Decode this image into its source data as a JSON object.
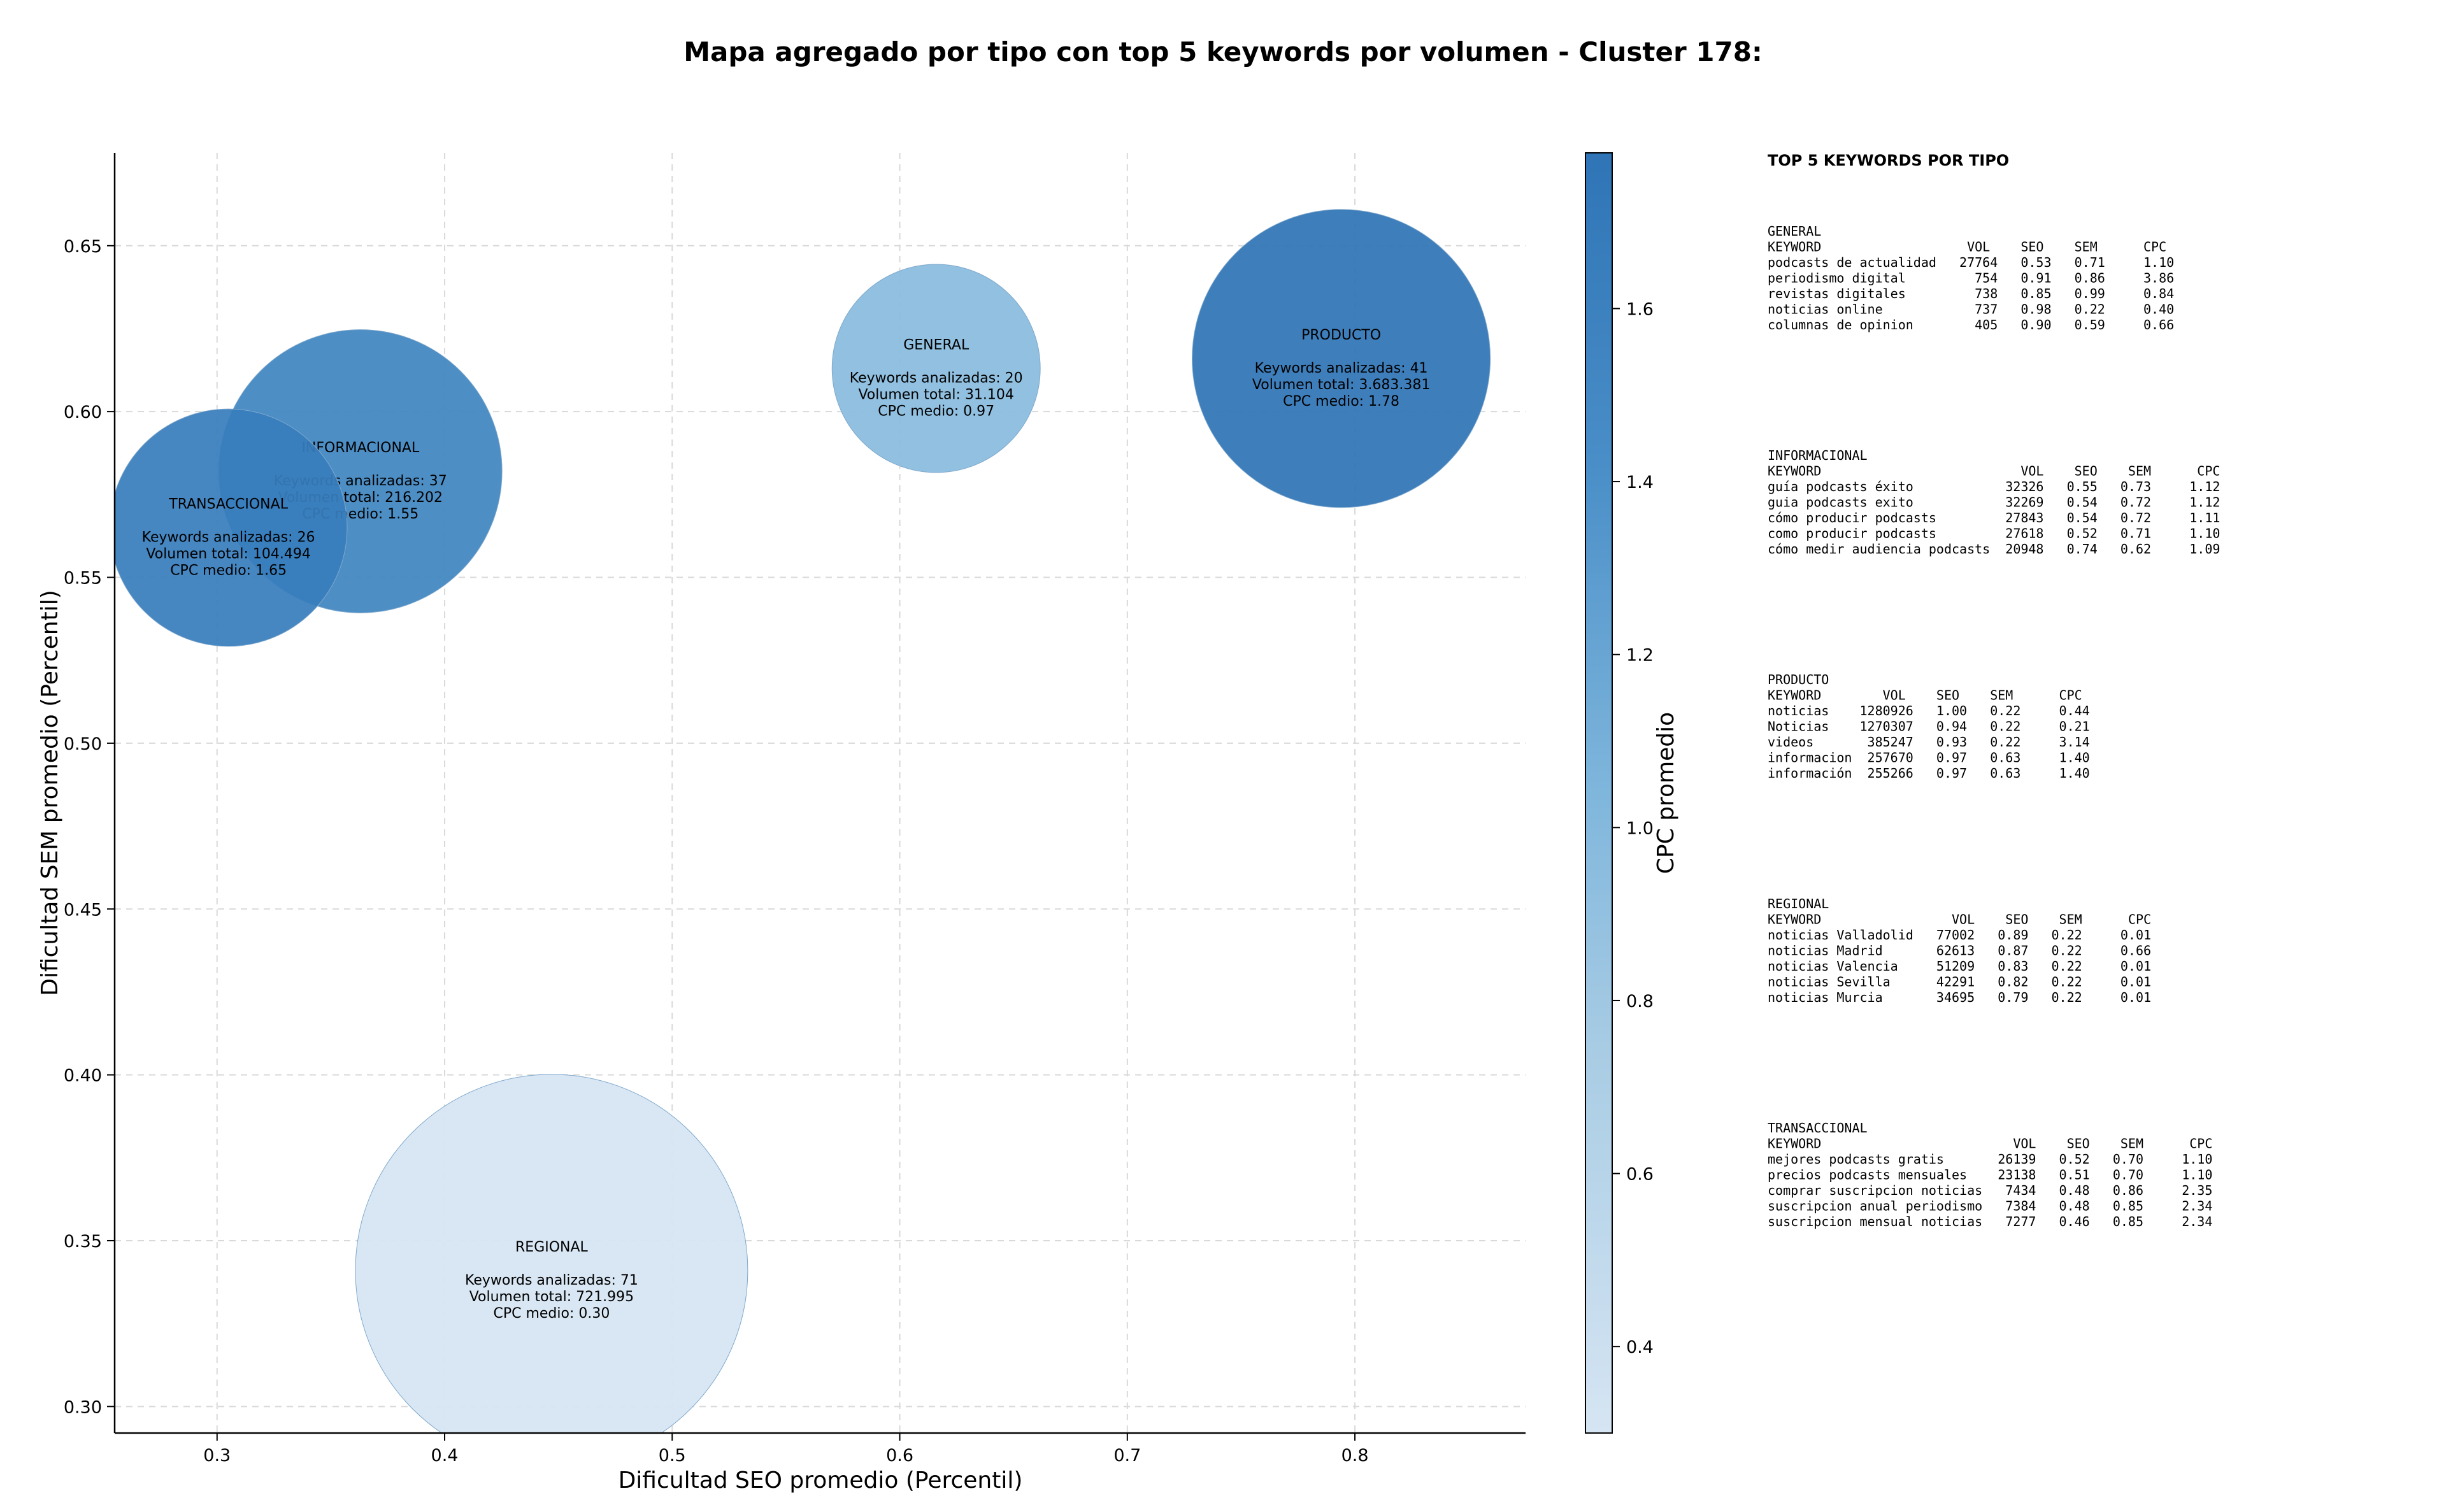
{
  "chart_data": {
    "type": "scatter",
    "title": "Mapa agregado por tipo con top 5 keywords por volumen - Cluster 178:",
    "xlabel": "Dificultad SEO promedio (Percentil)",
    "ylabel": "Dificultad SEM promedio (Percentil)",
    "xlim": [
      0.255,
      0.875
    ],
    "ylim": [
      0.292,
      0.678
    ],
    "xticks": [
      "0.3",
      "0.4",
      "0.5",
      "0.6",
      "0.7",
      "0.8"
    ],
    "yticks": [
      "0.30",
      "0.35",
      "0.40",
      "0.45",
      "0.50",
      "0.55",
      "0.60",
      "0.65"
    ],
    "grid": true,
    "colorbar": {
      "label": "CPC promedio",
      "range": [
        0.3,
        1.78
      ],
      "ticks": [
        "0.4",
        "0.6",
        "0.8",
        "1.0",
        "1.2",
        "1.4",
        "1.6"
      ]
    },
    "bubbles": [
      {
        "name": "GENERAL",
        "x": 0.616,
        "y": 0.613,
        "keywords": 20,
        "cpc": 0.97,
        "line1": "Keywords analizadas: 20",
        "line2": "Volumen total: 31.104",
        "line3": "CPC medio: 0.97"
      },
      {
        "name": "INFORMACIONAL",
        "x": 0.363,
        "y": 0.582,
        "keywords": 37,
        "cpc": 1.55,
        "line1": "Keywords analizadas: 37",
        "line2": "Volumen total: 216.202",
        "line3": "CPC medio: 1.55"
      },
      {
        "name": "TRANSACCIONAL",
        "x": 0.305,
        "y": 0.565,
        "keywords": 26,
        "cpc": 1.65,
        "line1": "Keywords analizadas: 26",
        "line2": "Volumen total: 104.494",
        "line3": "CPC medio: 1.65"
      },
      {
        "name": "PRODUCTO",
        "x": 0.794,
        "y": 0.616,
        "keywords": 41,
        "cpc": 1.78,
        "line1": "Keywords analizadas: 41",
        "line2": "Volumen total: 3.683.381",
        "line3": "CPC medio: 1.78"
      },
      {
        "name": "REGIONAL",
        "x": 0.447,
        "y": 0.341,
        "keywords": 71,
        "cpc": 0.3,
        "line1": "Keywords analizadas: 71",
        "line2": "Volumen total: 721.995",
        "line3": "CPC medio: 0.30"
      }
    ]
  },
  "side_panel": {
    "heading": "TOP 5 KEYWORDS POR TIPO",
    "blocks": [
      {
        "title": "GENERAL",
        "lines": [
          "KEYWORD                   VOL    SEO    SEM      CPC",
          "podcasts de actualidad   27764   0.53   0.71     1.10",
          "periodismo digital         754   0.91   0.86     3.86",
          "revistas digitales         738   0.85   0.99     0.84",
          "noticias online            737   0.98   0.22     0.40",
          "columnas de opinion        405   0.90   0.59     0.66"
        ]
      },
      {
        "title": "INFORMACIONAL",
        "lines": [
          "KEYWORD                          VOL    SEO    SEM      CPC",
          "guía podcasts éxito            32326   0.55   0.73     1.12",
          "guia podcasts exito            32269   0.54   0.72     1.12",
          "cómo producir podcasts         27843   0.54   0.72     1.11",
          "como producir podcasts         27618   0.52   0.71     1.10",
          "cómo medir audiencia podcasts  20948   0.74   0.62     1.09"
        ]
      },
      {
        "title": "PRODUCTO",
        "lines": [
          "KEYWORD        VOL    SEO    SEM      CPC",
          "noticias    1280926   1.00   0.22     0.44",
          "Noticias    1270307   0.94   0.22     0.21",
          "videos       385247   0.93   0.22     3.14",
          "informacion  257670   0.97   0.63     1.40",
          "información  255266   0.97   0.63     1.40"
        ]
      },
      {
        "title": "REGIONAL",
        "lines": [
          "KEYWORD                 VOL    SEO    SEM      CPC",
          "noticias Valladolid   77002   0.89   0.22     0.01",
          "noticias Madrid       62613   0.87   0.22     0.66",
          "noticias Valencia     51209   0.83   0.22     0.01",
          "noticias Sevilla      42291   0.82   0.22     0.01",
          "noticias Murcia       34695   0.79   0.22     0.01"
        ]
      },
      {
        "title": "TRANSACCIONAL",
        "lines": [
          "KEYWORD                         VOL    SEO    SEM      CPC",
          "mejores podcasts gratis       26139   0.52   0.70     1.10",
          "precios podcasts mensuales    23138   0.51   0.70     1.10",
          "comprar suscripcion noticias   7434   0.48   0.86     2.35",
          "suscripcion anual periodismo   7384   0.48   0.85     2.34",
          "suscripcion mensual noticias   7277   0.46   0.85     2.34"
        ]
      }
    ]
  }
}
